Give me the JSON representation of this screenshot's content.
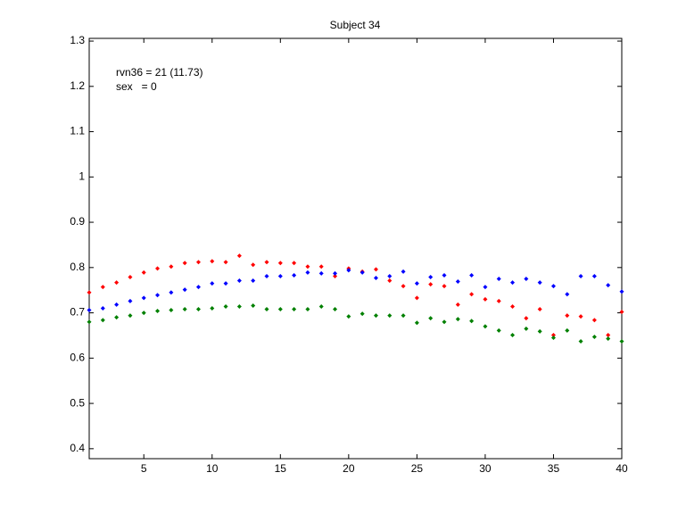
{
  "chart_data": {
    "type": "scatter",
    "title": "Subject 34",
    "annotations": [
      "rvn36 = 21 (11.73)",
      "sex   = 0"
    ],
    "x": [
      1,
      2,
      3,
      4,
      5,
      6,
      7,
      8,
      9,
      10,
      11,
      12,
      13,
      14,
      15,
      16,
      17,
      18,
      19,
      20,
      21,
      22,
      23,
      24,
      25,
      26,
      27,
      28,
      29,
      30,
      31,
      32,
      33,
      34,
      35,
      36,
      37,
      38,
      39,
      40
    ],
    "series": [
      {
        "color": "#ff0000",
        "values": [
          0.745,
          0.757,
          0.767,
          0.779,
          0.789,
          0.798,
          0.802,
          0.81,
          0.812,
          0.814,
          0.812,
          0.826,
          0.806,
          0.812,
          0.81,
          0.81,
          0.802,
          0.802,
          0.781,
          0.798,
          0.791,
          0.796,
          0.771,
          0.759,
          0.733,
          0.763,
          0.759,
          0.718,
          0.741,
          0.73,
          0.726,
          0.714,
          0.688,
          0.708,
          0.651,
          0.694,
          0.692,
          0.684,
          0.651,
          0.702
        ]
      },
      {
        "color": "#0000ff",
        "values": [
          0.706,
          0.71,
          0.718,
          0.726,
          0.733,
          0.739,
          0.745,
          0.751,
          0.757,
          0.765,
          0.765,
          0.771,
          0.771,
          0.781,
          0.781,
          0.783,
          0.789,
          0.787,
          0.787,
          0.794,
          0.789,
          0.777,
          0.781,
          0.791,
          0.765,
          0.779,
          0.783,
          0.769,
          0.783,
          0.757,
          0.775,
          0.767,
          0.775,
          0.767,
          0.759,
          0.741,
          0.781,
          0.781,
          0.761,
          0.747
        ]
      },
      {
        "color": "#008000",
        "values": [
          0.68,
          0.684,
          0.69,
          0.694,
          0.7,
          0.704,
          0.706,
          0.708,
          0.708,
          0.71,
          0.714,
          0.714,
          0.716,
          0.708,
          0.708,
          0.708,
          0.708,
          0.714,
          0.708,
          0.692,
          0.698,
          0.694,
          0.694,
          0.694,
          0.678,
          0.688,
          0.68,
          0.686,
          0.682,
          0.67,
          0.661,
          0.651,
          0.665,
          0.659,
          0.645,
          0.661,
          0.637,
          0.647,
          0.643,
          0.637
        ]
      }
    ],
    "xlim": [
      1,
      40
    ],
    "xticks": [
      5,
      10,
      15,
      20,
      25,
      30,
      35,
      40
    ],
    "ylim": [
      0.378,
      1.306
    ],
    "yticks": [
      0.4,
      0.5,
      0.6,
      0.7,
      0.8,
      0.9,
      1,
      1.1,
      1.2,
      1.3
    ]
  }
}
